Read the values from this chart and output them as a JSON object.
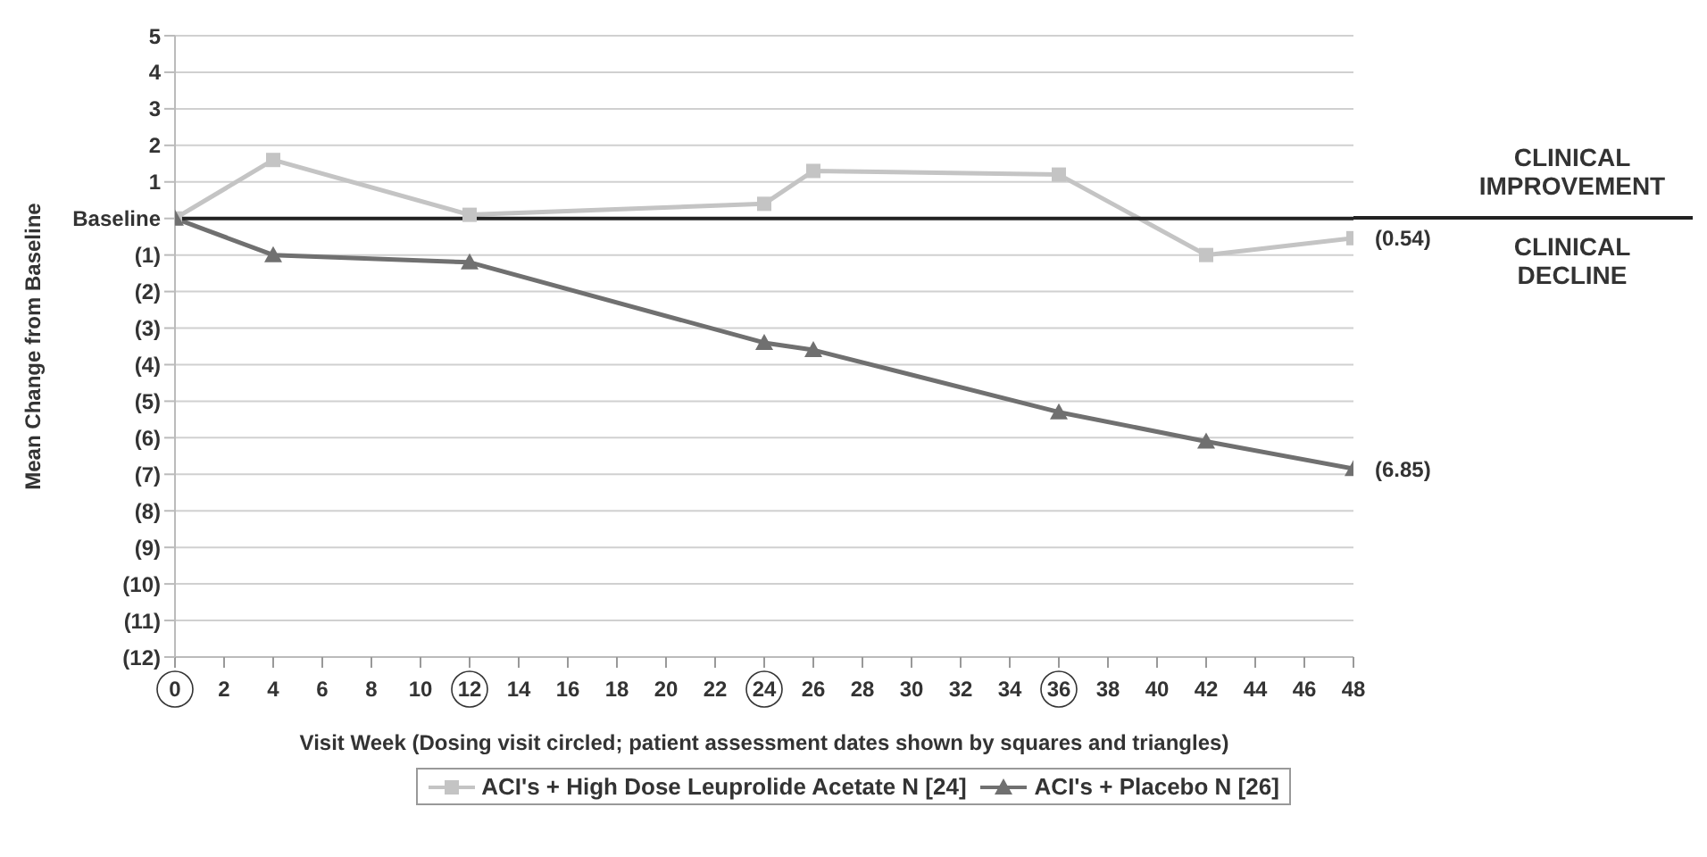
{
  "chart_data": {
    "type": "line",
    "xlabel": "Visit Week (Dosing visit circled; patient assessment dates shown by squares and triangles)",
    "ylabel": "Mean Change from Baseline",
    "x": [
      0,
      4,
      12,
      24,
      26,
      36,
      42,
      48
    ],
    "series": [
      {
        "name": "ACI's + High Dose Leuprolide Acetate N [24]",
        "color": "#c4c4c4",
        "marker": "square",
        "values": [
          0,
          1.6,
          0.1,
          0.4,
          1.3,
          1.2,
          -1.0,
          -0.54
        ]
      },
      {
        "name": "ACI's + Placebo N [26]",
        "color": "#707070",
        "marker": "triangle",
        "values": [
          0,
          -1.0,
          -1.2,
          -3.4,
          -3.6,
          -5.3,
          -6.1,
          -6.85
        ]
      }
    ],
    "xlim": [
      0,
      48
    ],
    "xticks": [
      0,
      2,
      4,
      6,
      8,
      10,
      12,
      14,
      16,
      18,
      20,
      22,
      24,
      26,
      28,
      30,
      32,
      34,
      36,
      38,
      40,
      42,
      44,
      46,
      48
    ],
    "ylim": [
      -12,
      5
    ],
    "yticks": [
      5,
      4,
      3,
      2,
      1,
      {
        "value": 0,
        "label": "Baseline"
      },
      {
        "value": -1,
        "label": "(1)"
      },
      {
        "value": -2,
        "label": "(2)"
      },
      {
        "value": -3,
        "label": "(3)"
      },
      {
        "value": -4,
        "label": "(4)"
      },
      {
        "value": -5,
        "label": "(5)"
      },
      {
        "value": -6,
        "label": "(6)"
      },
      {
        "value": -7,
        "label": "(7)"
      },
      {
        "value": -8,
        "label": "(8)"
      },
      {
        "value": -9,
        "label": "(9)"
      },
      {
        "value": -10,
        "label": "(10)"
      },
      {
        "value": -11,
        "label": "(11)"
      },
      {
        "value": -12,
        "label": "(12)"
      }
    ],
    "ref_lines": [
      {
        "axis": "y",
        "value": 0,
        "color": "#222222"
      }
    ],
    "annotations": [
      {
        "text": "(0.54)",
        "x": 48,
        "y": -0.54
      },
      {
        "text": "(6.85)",
        "x": 48,
        "y": -6.85
      },
      "CLINICAL IMPROVEMENT",
      "CLINICAL DECLINE"
    ],
    "grid": "y",
    "legend": "bottom"
  }
}
